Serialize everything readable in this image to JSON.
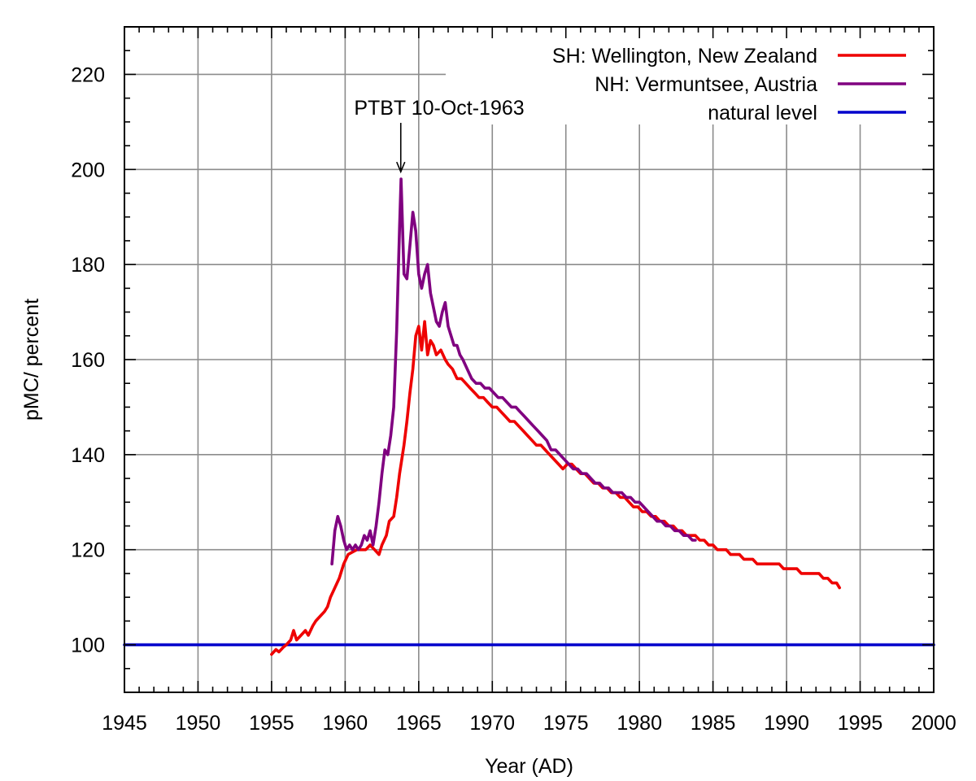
{
  "chart_data": {
    "type": "line",
    "xlabel": "Year (AD)",
    "ylabel": "pMC/ percent",
    "xlim": [
      1945,
      2000
    ],
    "ylim": [
      90,
      230
    ],
    "x_ticks": [
      1945,
      1950,
      1955,
      1960,
      1965,
      1970,
      1975,
      1980,
      1985,
      1990,
      1995,
      2000
    ],
    "y_ticks": [
      100,
      120,
      140,
      160,
      180,
      200,
      220
    ],
    "x_minor_step": 1,
    "y_minor_step": 5,
    "grid": true,
    "legend_position": "top-right",
    "series": [
      {
        "name": "SH: Wellington, New Zealand",
        "color": "#ee0000",
        "x": [
          1955.0,
          1955.3,
          1955.5,
          1955.8,
          1956.0,
          1956.3,
          1956.5,
          1956.7,
          1957.0,
          1957.3,
          1957.5,
          1957.8,
          1958.0,
          1958.3,
          1958.6,
          1958.8,
          1959.0,
          1959.3,
          1959.6,
          1959.9,
          1960.2,
          1960.5,
          1960.8,
          1961.1,
          1961.4,
          1961.7,
          1962.0,
          1962.3,
          1962.5,
          1962.8,
          1963.0,
          1963.3,
          1963.5,
          1963.7,
          1964.0,
          1964.2,
          1964.4,
          1964.6,
          1964.8,
          1965.0,
          1965.2,
          1965.4,
          1965.6,
          1965.8,
          1966.0,
          1966.2,
          1966.5,
          1966.8,
          1967.0,
          1967.3,
          1967.6,
          1967.9,
          1968.2,
          1968.5,
          1968.8,
          1969.1,
          1969.4,
          1969.7,
          1970.0,
          1970.3,
          1970.6,
          1970.9,
          1971.2,
          1971.5,
          1971.8,
          1972.1,
          1972.4,
          1972.7,
          1973.0,
          1973.3,
          1973.6,
          1973.9,
          1974.2,
          1974.5,
          1974.8,
          1975.1,
          1975.4,
          1975.7,
          1976.0,
          1976.3,
          1976.6,
          1976.9,
          1977.2,
          1977.5,
          1977.8,
          1978.1,
          1978.4,
          1978.7,
          1979.0,
          1979.3,
          1979.6,
          1979.9,
          1980.2,
          1980.5,
          1980.8,
          1981.1,
          1981.4,
          1981.7,
          1982.0,
          1982.3,
          1982.6,
          1982.9,
          1983.2,
          1983.5,
          1983.8,
          1984.1,
          1984.4,
          1984.7,
          1985.0,
          1985.3,
          1985.6,
          1985.9,
          1986.2,
          1986.5,
          1986.8,
          1987.1,
          1987.4,
          1987.7,
          1988.0,
          1988.3,
          1988.6,
          1988.9,
          1989.2,
          1989.5,
          1989.8,
          1990.1,
          1990.4,
          1990.7,
          1991.0,
          1991.3,
          1991.6,
          1991.9,
          1992.2,
          1992.5,
          1992.8,
          1993.1,
          1993.4,
          1993.6
        ],
        "y": [
          98,
          99,
          98.5,
          99.5,
          100,
          101,
          103,
          101,
          102,
          103,
          102,
          104,
          105,
          106,
          107,
          108,
          110,
          112,
          114,
          117,
          119,
          119.5,
          120,
          120,
          120,
          121,
          120,
          119,
          121,
          123,
          126,
          127,
          131,
          136,
          142,
          147,
          153,
          158,
          165,
          167,
          162,
          168,
          161,
          164,
          163,
          161,
          162,
          160,
          159,
          158,
          156,
          156,
          155,
          154,
          153,
          152,
          152,
          151,
          150,
          150,
          149,
          148,
          147,
          147,
          146,
          145,
          144,
          143,
          142,
          142,
          141,
          140,
          139,
          138,
          137,
          138,
          138,
          137,
          136,
          136,
          135,
          134,
          134,
          133,
          133,
          132,
          132,
          131,
          131,
          130,
          129,
          129,
          128,
          128,
          127,
          127,
          126,
          126,
          125,
          125,
          124,
          124,
          123,
          123,
          123,
          122,
          122,
          121,
          121,
          120,
          120,
          120,
          119,
          119,
          119,
          118,
          118,
          118,
          117,
          117,
          117,
          117,
          117,
          117,
          116,
          116,
          116,
          116,
          115,
          115,
          115,
          115,
          115,
          114,
          114,
          113,
          113,
          112
        ]
      },
      {
        "name": "NH: Vermuntsee, Austria",
        "color": "#800080",
        "x": [
          1959.1,
          1959.3,
          1959.5,
          1959.7,
          1959.9,
          1960.1,
          1960.3,
          1960.5,
          1960.7,
          1960.9,
          1961.1,
          1961.3,
          1961.5,
          1961.7,
          1961.9,
          1962.1,
          1962.3,
          1962.5,
          1962.7,
          1962.9,
          1963.1,
          1963.3,
          1963.5,
          1963.7,
          1963.8,
          1964.0,
          1964.2,
          1964.4,
          1964.6,
          1964.8,
          1965.0,
          1965.2,
          1965.4,
          1965.6,
          1965.8,
          1966.0,
          1966.2,
          1966.4,
          1966.6,
          1966.8,
          1967.0,
          1967.2,
          1967.4,
          1967.6,
          1967.8,
          1968.0,
          1968.3,
          1968.6,
          1968.9,
          1969.2,
          1969.5,
          1969.8,
          1970.1,
          1970.4,
          1970.7,
          1971.0,
          1971.3,
          1971.6,
          1971.9,
          1972.2,
          1972.5,
          1972.8,
          1973.1,
          1973.4,
          1973.7,
          1974.0,
          1974.3,
          1974.6,
          1974.9,
          1975.2,
          1975.5,
          1975.8,
          1976.1,
          1976.4,
          1976.7,
          1977.0,
          1977.3,
          1977.6,
          1977.9,
          1978.2,
          1978.5,
          1978.8,
          1979.1,
          1979.4,
          1979.7,
          1980.0,
          1980.3,
          1980.6,
          1980.9,
          1981.2,
          1981.5,
          1981.8,
          1982.1,
          1982.4,
          1982.7,
          1983.0,
          1983.3,
          1983.6,
          1983.8
        ],
        "y": [
          117,
          124,
          127,
          125,
          122,
          120,
          121,
          120,
          121,
          120,
          121,
          123,
          122,
          124,
          121,
          125,
          130,
          136,
          141,
          140,
          144,
          150,
          166,
          188,
          198,
          178,
          177,
          184,
          191,
          187,
          178,
          175,
          178,
          180,
          174,
          171,
          168,
          167,
          170,
          172,
          167,
          165,
          163,
          163,
          161,
          160,
          158,
          156,
          155,
          155,
          154,
          154,
          153,
          152,
          152,
          151,
          150,
          150,
          149,
          148,
          147,
          146,
          145,
          144,
          143,
          141,
          141,
          140,
          139,
          138,
          137,
          137,
          136,
          136,
          135,
          134,
          134,
          133,
          133,
          132,
          132,
          132,
          131,
          131,
          130,
          130,
          129,
          128,
          127,
          126,
          126,
          125,
          125,
          124,
          124,
          123,
          123,
          122,
          122
        ]
      },
      {
        "name": "natural level",
        "color": "#0000cc",
        "x": [
          1945,
          2000
        ],
        "y": [
          100,
          100
        ]
      }
    ],
    "annotations": [
      {
        "text": "PTBT 10-Oct-1963",
        "x": 1963.78,
        "y": 199
      }
    ]
  }
}
